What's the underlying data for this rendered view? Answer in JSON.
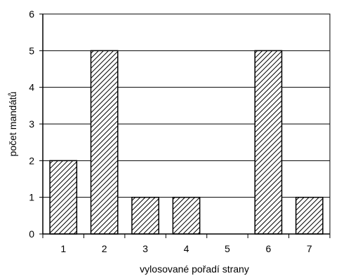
{
  "chart_data": {
    "type": "bar",
    "title": "",
    "xlabel": "vylosované pořadí strany",
    "ylabel": "počet mandátů",
    "categories": [
      "1",
      "2",
      "3",
      "4",
      "5",
      "6",
      "7"
    ],
    "values": [
      2,
      5,
      1,
      1,
      0,
      5,
      1
    ],
    "ylim": [
      0,
      6
    ],
    "yticks": [
      "0",
      "1",
      "2",
      "3",
      "4",
      "5",
      "6"
    ],
    "grid": "horizontal",
    "legend": "none",
    "bar_fill": "diagonal-hatch",
    "colors": {
      "bar_stroke": "#000000",
      "hatch": "#000000",
      "background": "#ffffff",
      "grid": "#000000"
    }
  }
}
